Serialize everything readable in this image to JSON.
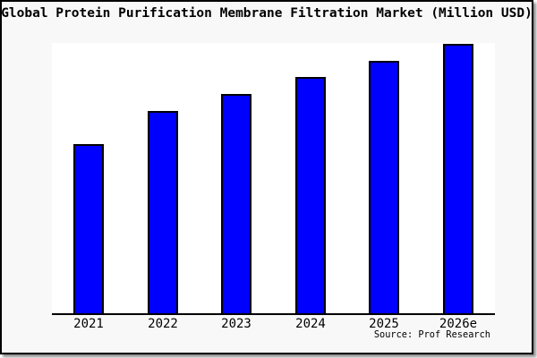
{
  "title": "Global Protein Purification Membrane Filtration Market (Million USD)",
  "source_note": "Source: Prof Research",
  "colors": {
    "bar_fill": "#0000ff",
    "bar_edge": "#000000",
    "figure_background": "#f8f8f8",
    "plot_background": "#ffffff",
    "axis_line": "#000000",
    "text": "#000000"
  },
  "chart_data": {
    "type": "bar",
    "title": "Global Protein Purification Membrane Filtration Market (Million USD)",
    "categories": [
      "2021",
      "2022",
      "2023",
      "2024",
      "2025",
      "2026e"
    ],
    "values": [
      189,
      226,
      245,
      264,
      282,
      301
    ],
    "values_note": "Y-axis has no ticks or labels in the image; values are relative estimates proportional to measured bar heights (2026e = max).",
    "unit": "Million USD (numeric axis values not shown)",
    "xlabel": "",
    "ylabel": "",
    "ylim_note": "baseline 0 at axis line; top of plot slightly above tallest bar",
    "grid": false,
    "legend": false,
    "bar_color": "#0000ff",
    "bar_edge_color": "#000000",
    "source": "Source: Prof Research"
  }
}
